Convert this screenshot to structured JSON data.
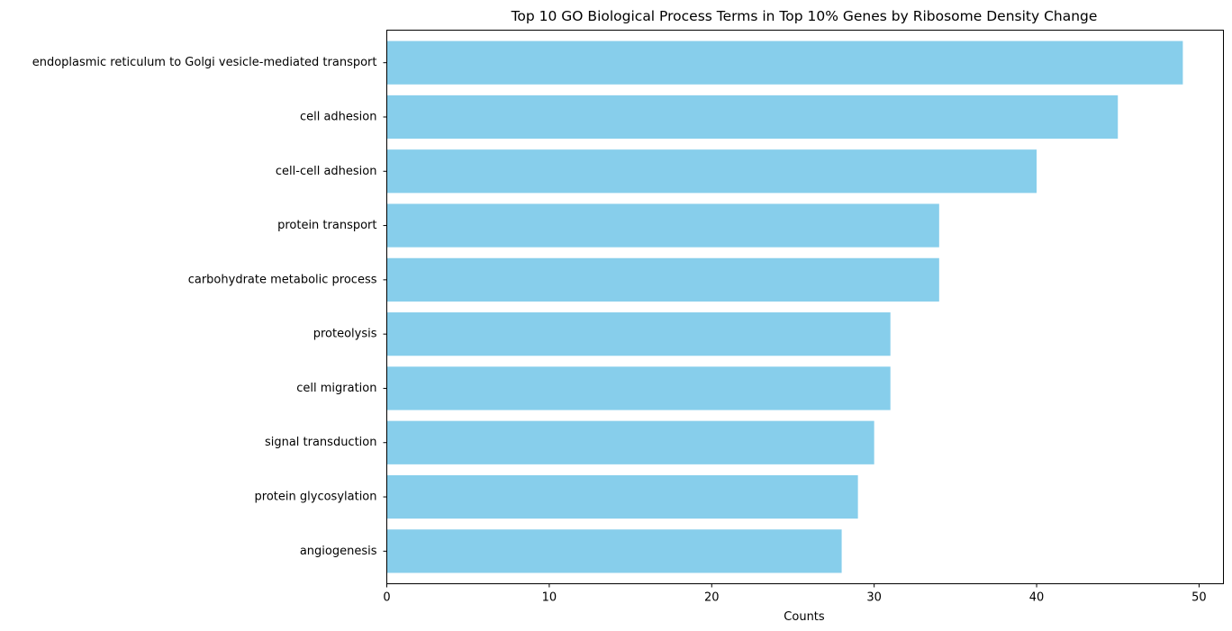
{
  "colors": {
    "bar": "#87ceeb",
    "axis": "#000000",
    "background": "#ffffff"
  },
  "chart_data": {
    "type": "bar",
    "orientation": "horizontal",
    "title": "Top 10 GO Biological Process Terms in Top 10% Genes by Ribosome Density Change",
    "xlabel": "Counts",
    "ylabel": "",
    "xlim": [
      0,
      51.5
    ],
    "xticks": [
      0,
      10,
      20,
      30,
      40,
      50
    ],
    "grid": false,
    "categories": [
      "endoplasmic reticulum to Golgi vesicle-mediated transport",
      "cell adhesion",
      "cell-cell adhesion",
      "protein transport",
      "carbohydrate metabolic process",
      "proteolysis",
      "cell migration",
      "signal transduction",
      "protein glycosylation",
      "angiogenesis"
    ],
    "values": [
      49,
      45,
      40,
      34,
      34,
      31,
      31,
      30,
      29,
      28
    ]
  }
}
